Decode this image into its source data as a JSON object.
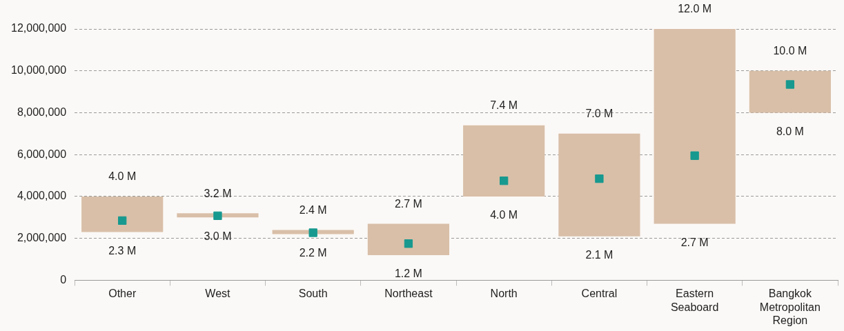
{
  "chart_data": {
    "type": "bar",
    "categories": [
      "Other",
      "West",
      "South",
      "Northeast",
      "North",
      "Central",
      "Eastern Seaboard",
      "Bangkok Metropolitan Region"
    ],
    "series": [
      {
        "color": "#d9bfa8",
        "base": [
          2300000,
          3000000,
          2200000,
          1200000,
          4000000,
          2100000,
          2700000,
          8000000
        ],
        "values": [
          1700000,
          200000,
          200000,
          1500000,
          3400000,
          4900000,
          9300000,
          2000000
        ]
      },
      {
        "type": "scatter",
        "color": "#17998f",
        "marker": "square",
        "x": [
          "Other",
          "West",
          "South",
          "Northeast",
          "North",
          "Central",
          "Eastern Seaboard",
          "Bangkok Metropolitan Region"
        ],
        "values": [
          2850000,
          3080000,
          2270000,
          1750000,
          4750000,
          4850000,
          5950000,
          9350000
        ]
      }
    ],
    "ylim": [
      0,
      12000000
    ],
    "yticks": [
      0,
      {
        "value": 2000000,
        "label": "2,000,000"
      },
      {
        "value": 4000000,
        "label": "4,000,000"
      },
      {
        "value": 6000000,
        "label": "6,000,000"
      },
      {
        "value": 8000000,
        "label": "8,000,000"
      },
      {
        "value": 10000000,
        "label": "10,000,000"
      },
      {
        "value": 12000000,
        "label": "12,000,000"
      }
    ],
    "grid": "y",
    "annotations": [
      {
        "text": "4.0 M",
        "x": "Other",
        "y": 4000000
      },
      {
        "text": "2.3 M",
        "x": "Other",
        "y": 2300000
      },
      {
        "text": "3.2 M",
        "x": "West",
        "y": 3200000
      },
      {
        "text": "3.0 M",
        "x": "West",
        "y": 3000000
      },
      {
        "text": "2.4 M",
        "x": "South",
        "y": 2400000
      },
      {
        "text": "2.2 M",
        "x": "South",
        "y": 2200000
      },
      {
        "text": "2.7 M",
        "x": "Northeast",
        "y": 2700000
      },
      {
        "text": "1.2 M",
        "x": "Northeast",
        "y": 1200000
      },
      {
        "text": "7.4 M",
        "x": "North",
        "y": 7400000
      },
      {
        "text": "4.0 M",
        "x": "North",
        "y": 4000000
      },
      {
        "text": "7.0 M",
        "x": "Central",
        "y": 7000000
      },
      {
        "text": "2.1 M",
        "x": "Central",
        "y": 2100000
      },
      {
        "text": "12.0 M",
        "x": "Eastern Seaboard",
        "y": 12000000
      },
      {
        "text": "2.7 M",
        "x": "Eastern Seaboard",
        "y": 2700000
      },
      {
        "text": "10.0 M",
        "x": "Bangkok Metropolitan Region",
        "y": 10000000
      },
      {
        "text": "8.0 M",
        "x": "Bangkok Metropolitan Region",
        "y": 8000000
      }
    ]
  }
}
